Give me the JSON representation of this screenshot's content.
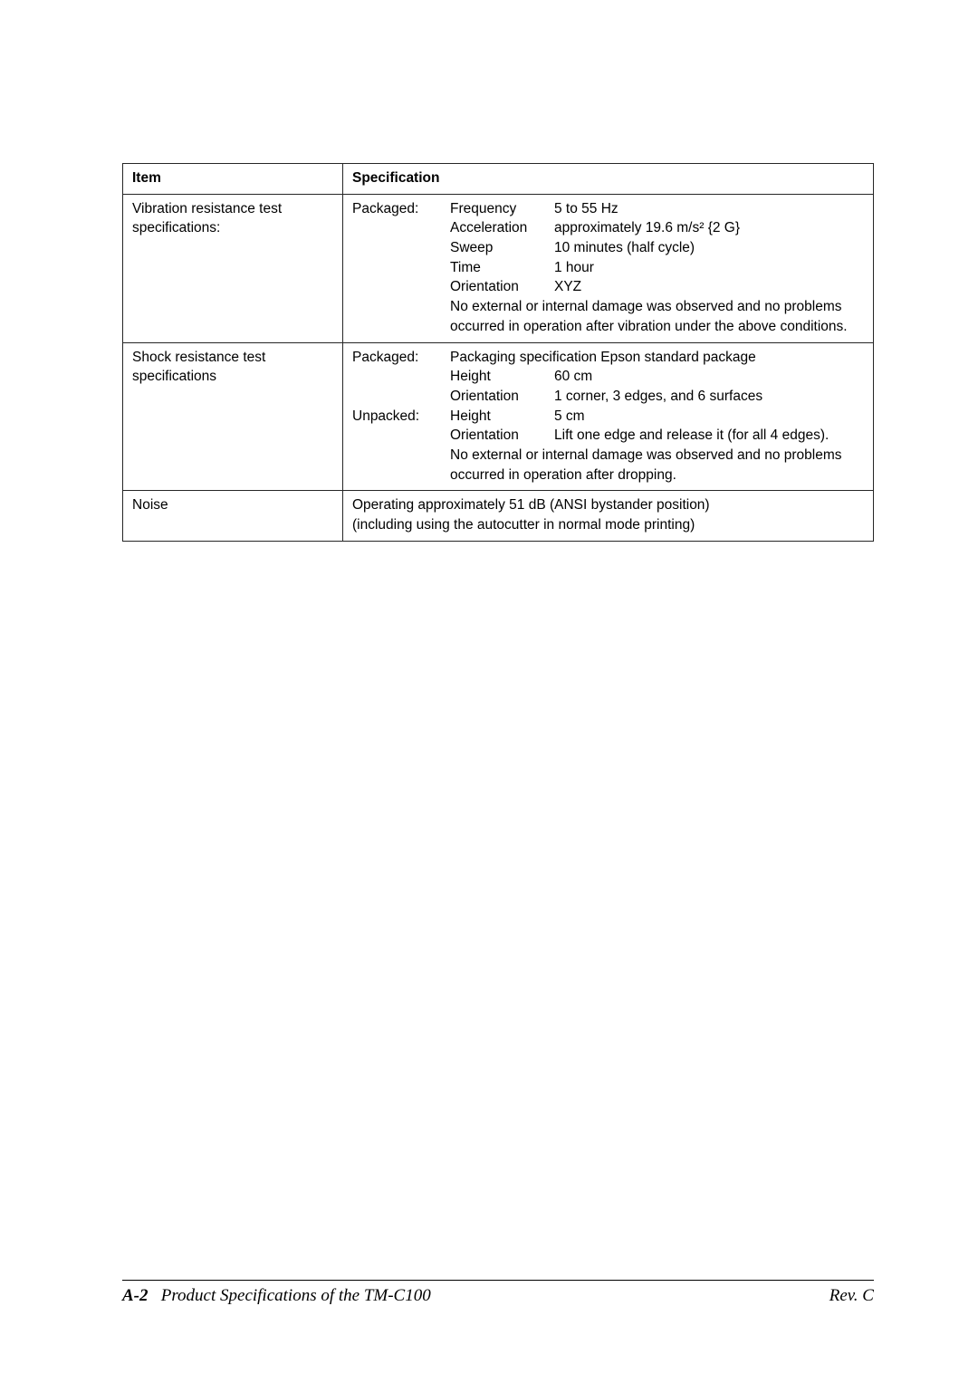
{
  "table": {
    "headers": {
      "item": "Item",
      "spec": "Specification"
    },
    "rows": {
      "vibration": {
        "item": "Vibration resistance test specifications:",
        "label": "Packaged:",
        "pairs": [
          {
            "k": "Frequency",
            "v": "5 to 55 Hz"
          },
          {
            "k": "Acceleration",
            "v": "approximately 19.6 m/s² {2 G}"
          },
          {
            "k": "Sweep",
            "v": "10 minutes (half cycle)"
          },
          {
            "k": "Time",
            "v": "1 hour"
          },
          {
            "k": "Orientation",
            "v": "XYZ"
          }
        ],
        "tail": "No external or internal damage was observed and no problems occurred in operation after vibration under the above conditions."
      },
      "shock": {
        "item": "Shock resistance test specifications",
        "label1": "Packaged:",
        "lead": "Packaging specification  Epson standard package",
        "pairs1": [
          {
            "k": "Height",
            "v": "60 cm"
          },
          {
            "k": "Orientation",
            "v": "1 corner, 3 edges, and 6 surfaces"
          }
        ],
        "label2": "Unpacked:",
        "pairs2": [
          {
            "k": "Height",
            "v": "5 cm"
          },
          {
            "k": "Orientation",
            "v": "Lift one edge and release it (for all 4 edges)."
          }
        ],
        "tail": "No external or internal damage was observed and no problems occurred in operation after dropping."
      },
      "noise": {
        "item": "Noise",
        "line1": "Operating  approximately 51 dB (ANSI bystander position)",
        "line2": "(including using the autocutter in normal mode printing)"
      }
    }
  },
  "footer": {
    "page": "A-2",
    "title": "Product Specifications of the TM-C100",
    "rev": "Rev. C"
  }
}
